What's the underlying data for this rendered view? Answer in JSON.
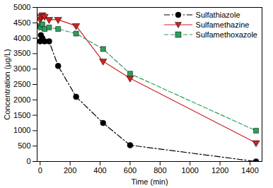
{
  "chart_data": {
    "type": "line",
    "x_label": "Time (min)",
    "y_label": "Concentration (µg/L)",
    "x": [
      0,
      5,
      15,
      30,
      60,
      120,
      240,
      420,
      600,
      1440
    ],
    "series": [
      {
        "name": "Sulfathiazole",
        "color": "#000000",
        "marker": "circle",
        "line_style": "dashdot",
        "values": [
          3900,
          4100,
          4000,
          3900,
          3900,
          3100,
          2100,
          1250,
          530,
          0
        ]
      },
      {
        "name": "Sulfamethazine",
        "color": "#cc2222",
        "marker": "triangle-down",
        "line_style": "solid",
        "values": [
          4600,
          4700,
          4750,
          4700,
          4600,
          4600,
          4400,
          3250,
          2700,
          600
        ]
      },
      {
        "name": "Sulfamethoxazole",
        "color": "#2e9e5b",
        "marker": "square",
        "line_style": "dashed",
        "values": [
          4400,
          4350,
          4450,
          4300,
          4350,
          4300,
          4150,
          3650,
          2850,
          1000
        ]
      }
    ],
    "xlim": [
      -20,
      1480
    ],
    "xticks": [
      0,
      200,
      400,
      600,
      800,
      1000,
      1200,
      1400
    ],
    "ylim": [
      0,
      5000
    ],
    "yticks": [
      0,
      500,
      1000,
      1500,
      2000,
      2500,
      3000,
      3500,
      4000,
      4500,
      5000
    ],
    "grid": false,
    "legend": "upper right"
  }
}
